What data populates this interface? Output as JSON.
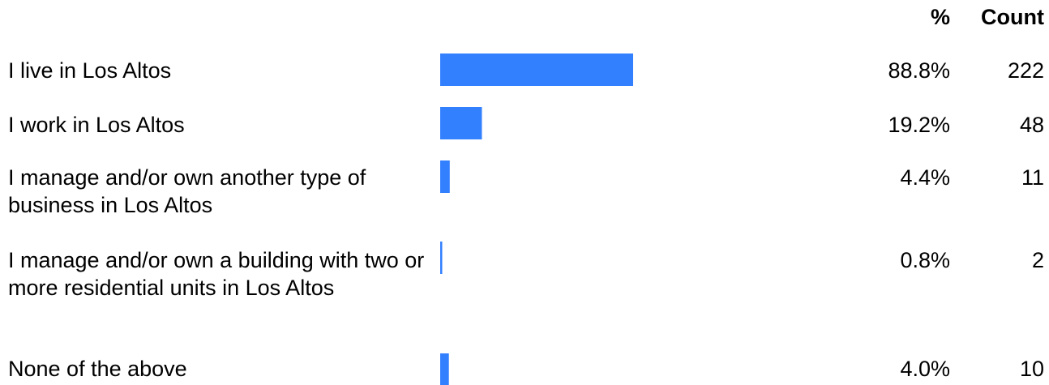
{
  "header": {
    "pct_label": "%",
    "count_label": "Count"
  },
  "rows": [
    {
      "label": "I live in Los Altos",
      "pct": "88.8%",
      "count": "222"
    },
    {
      "label": "I work in Los Altos",
      "pct": "19.2%",
      "count": "48"
    },
    {
      "label": "I manage and/or own another type of business in Los Altos",
      "pct": "4.4%",
      "count": "11"
    },
    {
      "label": "I manage and/or own a building with two or more residential units in Los Altos",
      "pct": "0.8%",
      "count": "2"
    },
    {
      "label": "None of the above",
      "pct": "4.0%",
      "count": "10"
    }
  ],
  "chart_data": {
    "type": "bar",
    "orientation": "horizontal",
    "categories": [
      "I live in Los Altos",
      "I work in Los Altos",
      "I manage and/or own another type of business in Los Altos",
      "I manage and/or own a building with two or more residential units in Los Altos",
      "None of the above"
    ],
    "values": [
      88.8,
      19.2,
      4.4,
      0.8,
      4.0
    ],
    "counts": [
      222,
      48,
      11,
      2,
      10
    ],
    "bar_color": "#3380ff",
    "grid": false
  }
}
